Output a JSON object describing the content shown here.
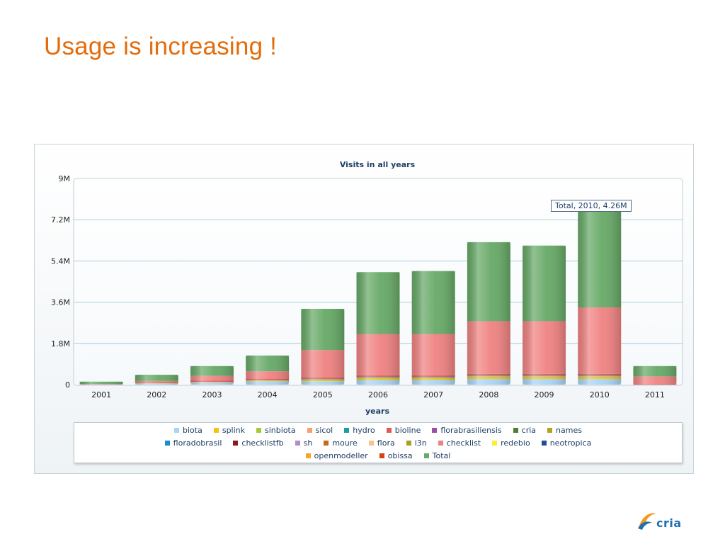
{
  "slide": {
    "title": "Usage is increasing !"
  },
  "tooltip": {
    "text": "Total, 2010, 4.26M"
  },
  "logo": {
    "text": "cria"
  },
  "chart_data": {
    "type": "bar",
    "stacked": true,
    "title": "Visits in all years",
    "xlabel": "years",
    "ylabel": "",
    "ylim": [
      0,
      9000000
    ],
    "yticks": [
      0,
      1800000,
      3600000,
      5400000,
      7200000,
      9000000
    ],
    "ytick_labels": [
      "0",
      "1.8M",
      "3.6M",
      "5.4M",
      "7.2M",
      "9M"
    ],
    "grid": true,
    "legend_position": "bottom",
    "categories": [
      "2001",
      "2002",
      "2003",
      "2004",
      "2005",
      "2006",
      "2007",
      "2008",
      "2009",
      "2010",
      "2011"
    ],
    "series": [
      {
        "name": "biota",
        "color": "#a9d4f5",
        "values": [
          20000,
          60000,
          100000,
          150000,
          150000,
          200000,
          200000,
          250000,
          250000,
          250000,
          0
        ]
      },
      {
        "name": "splink",
        "color": "#f2c40f",
        "values": [
          0,
          10000,
          20000,
          30000,
          50000,
          60000,
          60000,
          70000,
          70000,
          70000,
          0
        ]
      },
      {
        "name": "sinbiota",
        "color": "#a6c93a",
        "values": [
          0,
          0,
          0,
          10000,
          20000,
          30000,
          30000,
          30000,
          30000,
          30000,
          0
        ]
      },
      {
        "name": "sicol",
        "color": "#f5a06e",
        "values": [
          0,
          0,
          0,
          10000,
          20000,
          30000,
          30000,
          30000,
          30000,
          30000,
          0
        ]
      },
      {
        "name": "hydro",
        "color": "#1a9e9e",
        "values": [
          0,
          0,
          0,
          0,
          10000,
          20000,
          20000,
          20000,
          20000,
          20000,
          0
        ]
      },
      {
        "name": "bioline",
        "color": "#e05a5a",
        "values": [
          10000,
          40000,
          60000,
          60000,
          60000,
          70000,
          70000,
          70000,
          70000,
          70000,
          30000
        ]
      },
      {
        "name": "florabrasiliensis",
        "color": "#9b4ea6",
        "values": [
          0,
          0,
          0,
          0,
          0,
          0,
          0,
          0,
          0,
          0,
          0
        ]
      },
      {
        "name": "cria",
        "color": "#4f7f32",
        "values": [
          0,
          0,
          0,
          0,
          0,
          0,
          0,
          0,
          0,
          0,
          0
        ]
      },
      {
        "name": "names",
        "color": "#b5a21a",
        "values": [
          0,
          0,
          0,
          0,
          0,
          0,
          0,
          0,
          0,
          0,
          0
        ]
      },
      {
        "name": "floradobrasil",
        "color": "#1b8ec9",
        "values": [
          0,
          0,
          0,
          0,
          0,
          0,
          0,
          0,
          0,
          0,
          0
        ]
      },
      {
        "name": "checklistfb",
        "color": "#8b1a1a",
        "values": [
          0,
          0,
          0,
          0,
          0,
          0,
          0,
          0,
          0,
          0,
          0
        ]
      },
      {
        "name": "sh",
        "color": "#b48cc9",
        "values": [
          0,
          0,
          0,
          0,
          0,
          0,
          0,
          0,
          0,
          0,
          0
        ]
      },
      {
        "name": "moure",
        "color": "#c56b1a",
        "values": [
          0,
          0,
          0,
          0,
          0,
          0,
          0,
          0,
          0,
          0,
          0
        ]
      },
      {
        "name": "flora",
        "color": "#f7c48e",
        "values": [
          0,
          0,
          0,
          0,
          0,
          0,
          0,
          0,
          0,
          0,
          0
        ]
      },
      {
        "name": "i3n",
        "color": "#a9a01e",
        "values": [
          0,
          0,
          0,
          0,
          0,
          0,
          0,
          0,
          0,
          0,
          0
        ]
      },
      {
        "name": "checklist",
        "color": "#f08282",
        "values": [
          0,
          50000,
          200000,
          320000,
          1200000,
          1800000,
          1800000,
          2300000,
          2300000,
          2900000,
          330000
        ]
      },
      {
        "name": "redebio",
        "color": "#fff02e",
        "values": [
          0,
          0,
          0,
          0,
          0,
          0,
          0,
          0,
          0,
          0,
          0
        ]
      },
      {
        "name": "neotropica",
        "color": "#1f4f99",
        "values": [
          0,
          0,
          0,
          0,
          0,
          0,
          0,
          0,
          0,
          0,
          0
        ]
      },
      {
        "name": "openmodeller",
        "color": "#f5a623",
        "values": [
          0,
          0,
          0,
          0,
          0,
          0,
          0,
          0,
          0,
          0,
          0
        ]
      },
      {
        "name": "obissa",
        "color": "#d6401a",
        "values": [
          0,
          0,
          0,
          0,
          0,
          0,
          0,
          0,
          0,
          0,
          0
        ]
      },
      {
        "name": "Total",
        "color": "#67a967",
        "values": [
          100000,
          270000,
          430000,
          690000,
          1800000,
          2700000,
          2750000,
          3450000,
          3300000,
          4260000,
          450000
        ]
      }
    ]
  }
}
